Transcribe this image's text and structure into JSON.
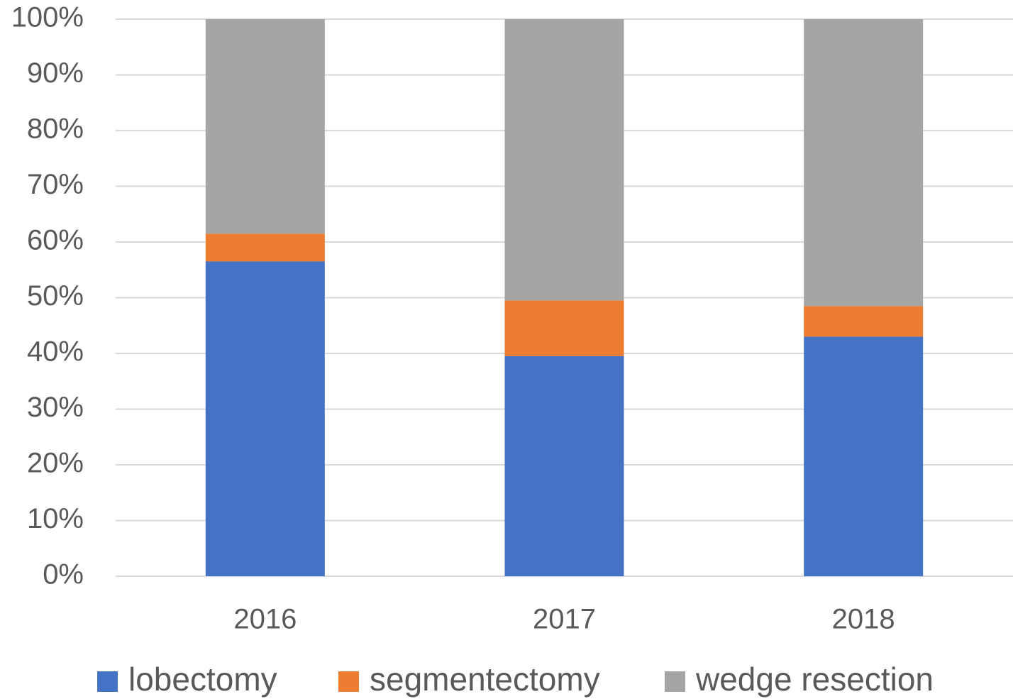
{
  "chart_data": {
    "type": "stacked_bar",
    "categories": [
      "2016",
      "2017",
      "2018"
    ],
    "series": [
      {
        "name": "lobectomy",
        "color": "#4472c4",
        "values": [
          56.5,
          39.5,
          43
        ]
      },
      {
        "name": "segmentectomy",
        "color": "#ed7d31",
        "values": [
          5,
          10,
          5.5
        ]
      },
      {
        "name": "wedge resection",
        "color": "#a5a5a5",
        "values": [
          38.5,
          50.5,
          51.5
        ]
      }
    ],
    "ylim": [
      0,
      100
    ],
    "yticks": [
      {
        "value": 0,
        "label": "0%"
      },
      {
        "value": 10,
        "label": "10%"
      },
      {
        "value": 20,
        "label": "20%"
      },
      {
        "value": 30,
        "label": "30%"
      },
      {
        "value": 40,
        "label": "40%"
      },
      {
        "value": 50,
        "label": "50%"
      },
      {
        "value": 60,
        "label": "60%"
      },
      {
        "value": 70,
        "label": "70%"
      },
      {
        "value": 80,
        "label": "80%"
      },
      {
        "value": 90,
        "label": "90%"
      },
      {
        "value": 100,
        "label": "100%"
      }
    ],
    "grid": true,
    "legend": "bottom"
  }
}
